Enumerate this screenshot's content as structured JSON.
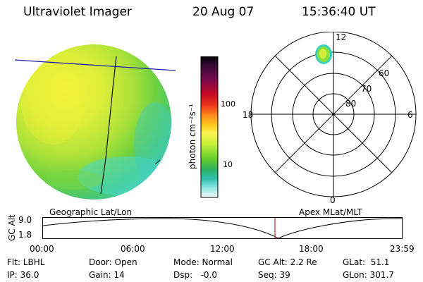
{
  "header": {
    "instrument": "Ultraviolet Imager",
    "date": "20 Aug 07",
    "time": "15:36:40 UT"
  },
  "colorbar": {
    "label": "photon cm⁻²s⁻¹",
    "ticks": [
      "100",
      "10"
    ],
    "stops": [
      "#000000",
      "#2a0a2a",
      "#5a0a4a",
      "#8a0a3a",
      "#c00a1a",
      "#e83a1a",
      "#ff8a1a",
      "#ffc21a",
      "#fff24a",
      "#c8f03a",
      "#7ad02a",
      "#3ab04a",
      "#2ab0a0",
      "#7ae0e0",
      "#c8f4f0",
      "#f4fbfb"
    ]
  },
  "polar_plot": {
    "lat_labels": [
      "60",
      "70",
      "80"
    ],
    "mlt_labels": {
      "top": "12",
      "bottom": "0",
      "left": "18",
      "right": "6"
    }
  },
  "footer_labels": {
    "left": "Geographic Lat/Lon",
    "right": "Apex MLat/MLT"
  },
  "altitude_strip": {
    "ylabel": "GC Alt",
    "y_ticks": [
      "9.0",
      "1.8"
    ],
    "x_ticks": [
      "00:00",
      "06:00",
      "12:00",
      "18:00",
      "23:59"
    ],
    "marker_color": "#d02020"
  },
  "status": {
    "flt": "Flt: LBHL",
    "ip": "IP: 36.0",
    "door": "Door: Open",
    "gain": "Gain: 14",
    "mode": "Mode: Normal",
    "dsp": "Dsp:   -0.0",
    "gcalt": "GC Alt: 2.2 Re",
    "seq": "Seq: 39",
    "glat": "GLat:  51.1",
    "glon": "GLon: 301.7"
  }
}
